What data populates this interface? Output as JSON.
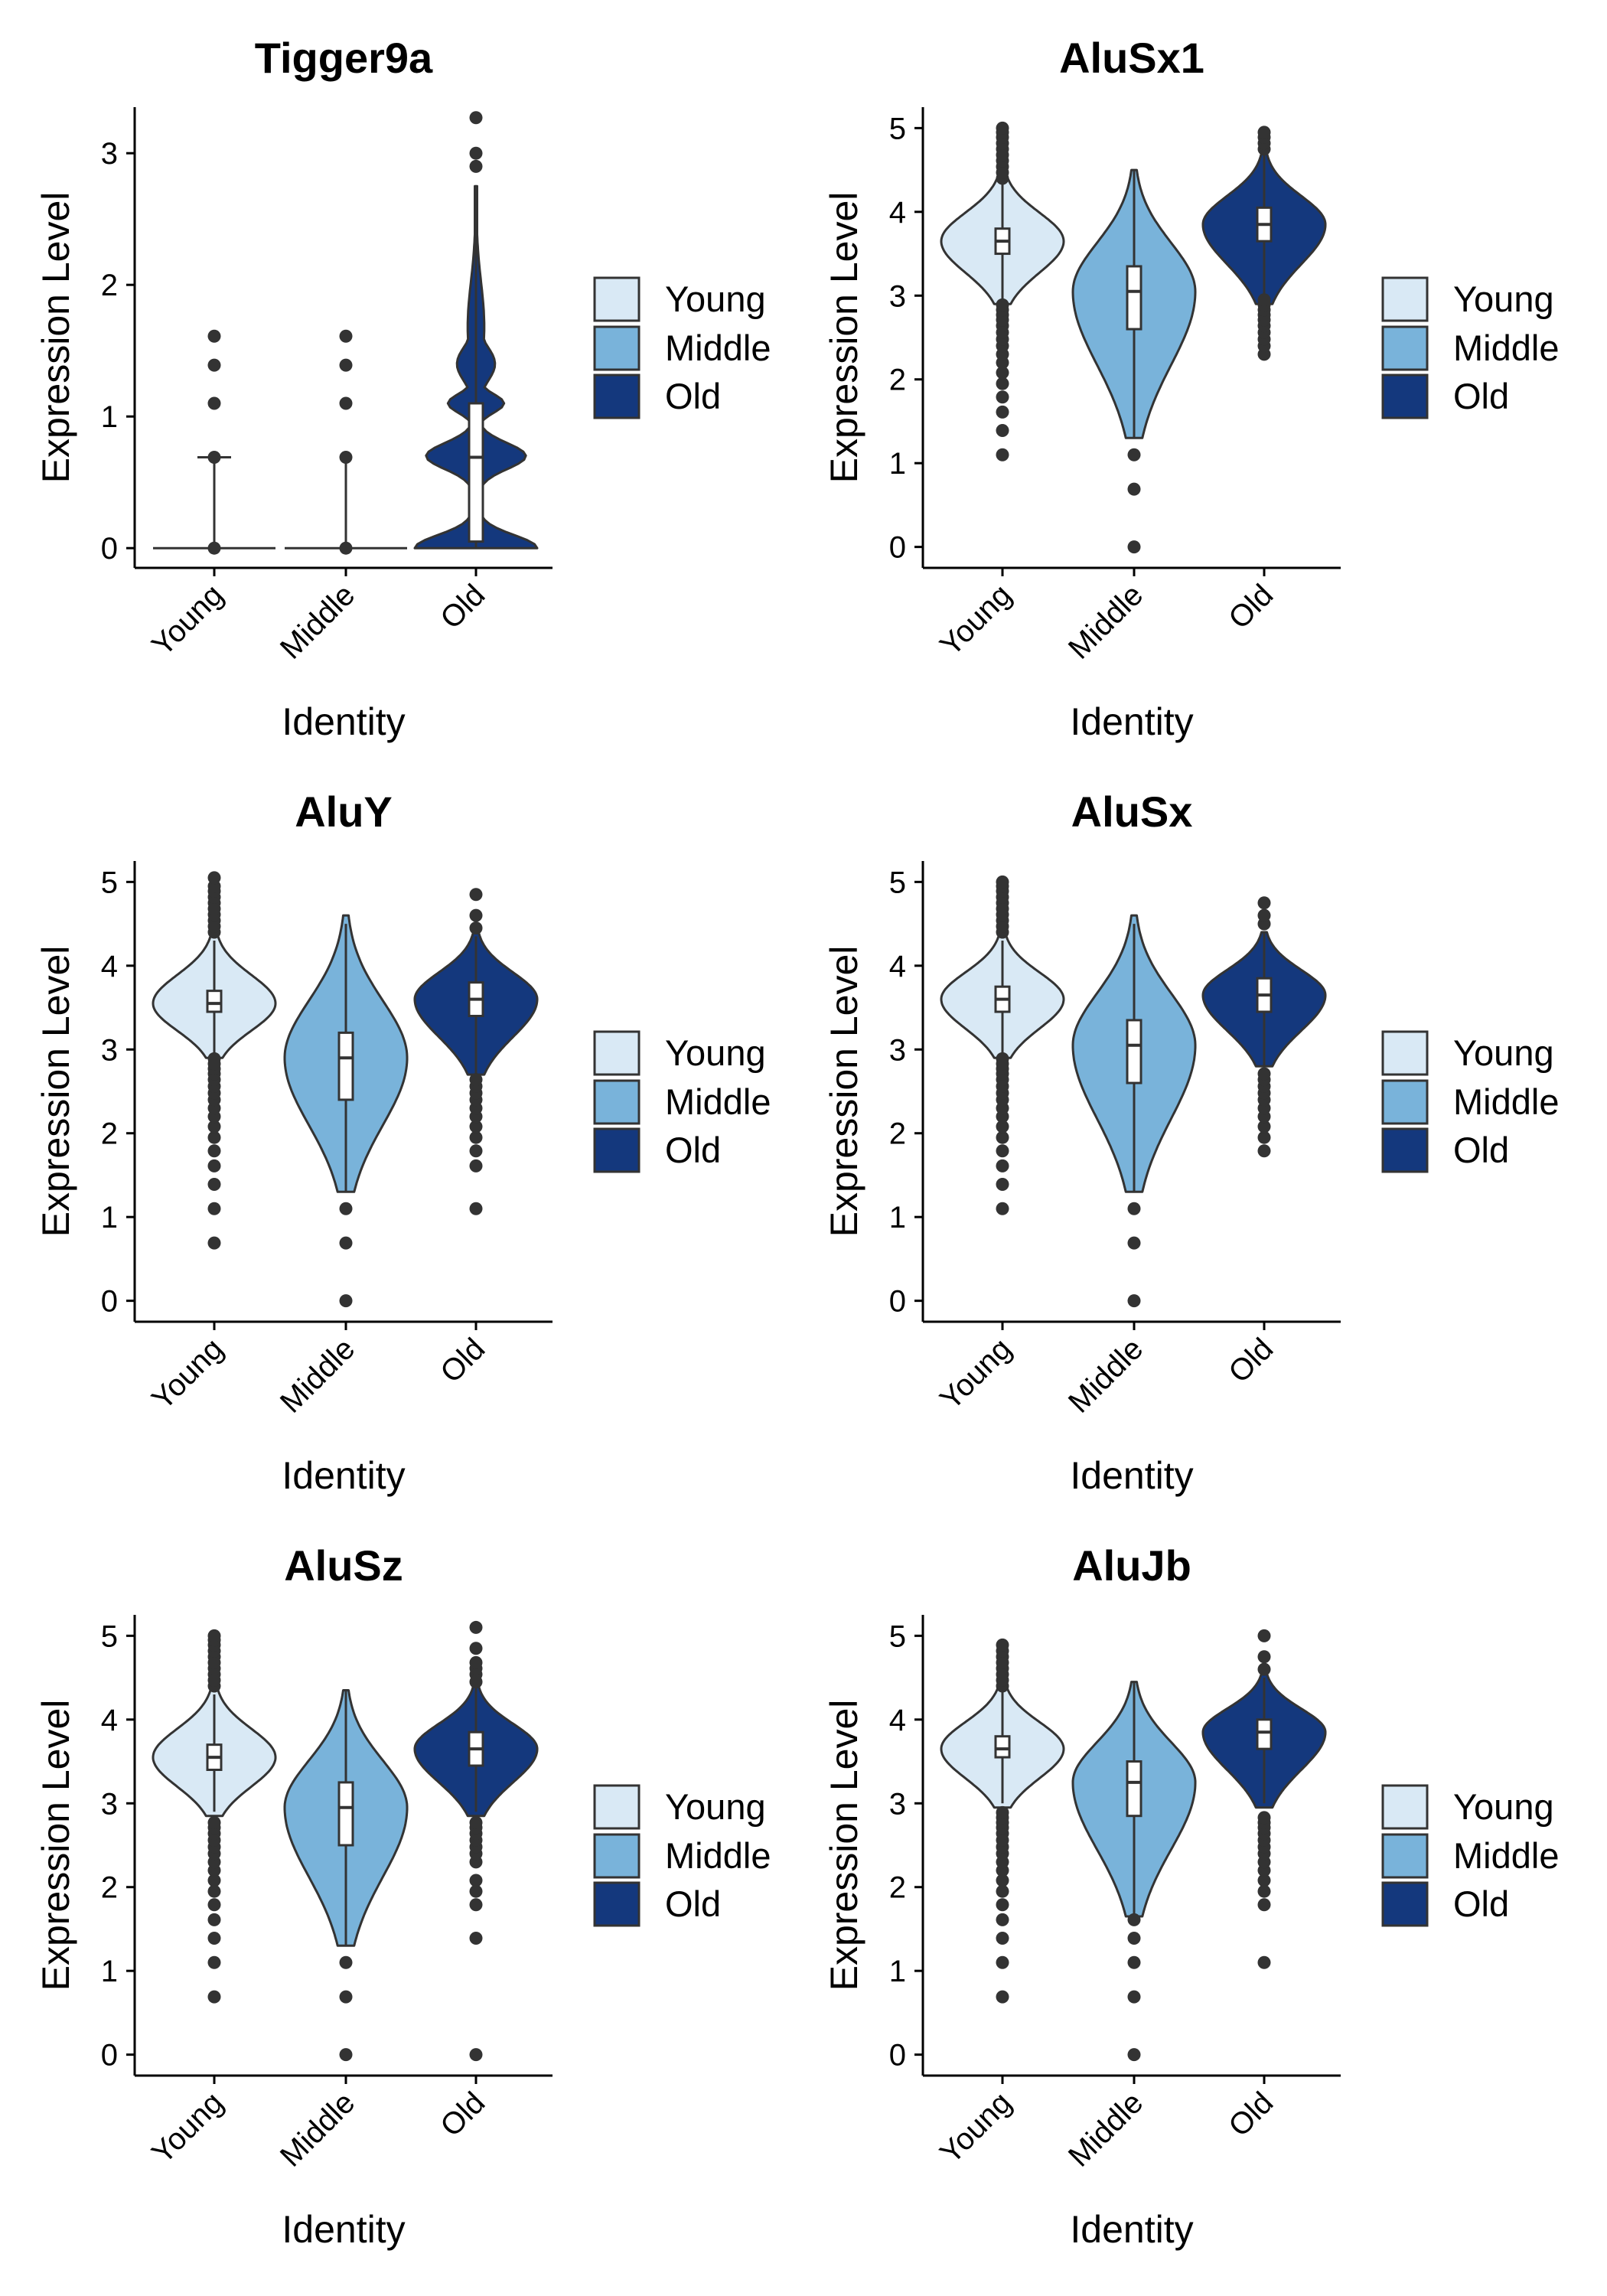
{
  "colors": {
    "Young": "#d9e9f5",
    "Middle": "#79b3da",
    "Old": "#14387d",
    "outline": "#333333"
  },
  "chart_data": [
    {
      "type": "violin",
      "title": "Tigger9a",
      "xlabel": "Identity",
      "ylabel": "Expression Level",
      "categories": [
        "Young",
        "Middle",
        "Old"
      ],
      "ylim": [
        -0.15,
        3.35
      ],
      "yticks": [
        0,
        1,
        2,
        3
      ],
      "legend": [
        "Young",
        "Middle",
        "Old"
      ],
      "groups": [
        {
          "name": "Young",
          "min": 0,
          "q1": 0,
          "median": 0,
          "q3": 0,
          "max": 0.69,
          "top": 0.69,
          "degenerate": true,
          "mode_lines": [
            0.69
          ],
          "outliers": [
            0,
            0.69,
            1.1,
            1.39,
            1.61
          ]
        },
        {
          "name": "Middle",
          "min": 0,
          "q1": 0,
          "median": 0,
          "q3": 0,
          "max": 0.69,
          "top": 0.69,
          "degenerate": true,
          "mode_lines": [],
          "outliers": [
            0,
            0.69,
            1.1,
            1.39,
            1.61
          ]
        },
        {
          "name": "Old",
          "min": 0,
          "q1": 0.05,
          "median": 0.69,
          "q3": 1.1,
          "max": 2.75,
          "top": 2.75,
          "shape": "tigger",
          "outliers": [
            2.9,
            3.0,
            3.27
          ]
        }
      ]
    },
    {
      "type": "violin",
      "title": "AluSx1",
      "xlabel": "Identity",
      "ylabel": "Expression Level",
      "categories": [
        "Young",
        "Middle",
        "Old"
      ],
      "ylim": [
        -0.25,
        5.25
      ],
      "yticks": [
        0,
        1,
        2,
        3,
        4,
        5
      ],
      "legend": [
        "Young",
        "Middle",
        "Old"
      ],
      "groups": [
        {
          "name": "Young",
          "min": 2.95,
          "q1": 3.5,
          "median": 3.65,
          "q3": 3.8,
          "max": 4.35,
          "top": 4.5,
          "bottom": 2.9,
          "outliers": [
            1.1,
            1.39,
            1.61,
            1.79,
            1.95,
            2.08,
            2.2,
            2.3,
            2.4,
            2.48,
            2.56,
            2.64,
            2.71,
            2.77,
            2.83,
            2.89,
            4.4,
            4.47,
            4.54,
            4.61,
            4.68,
            4.75,
            4.82,
            4.89,
            4.95,
            5.0
          ]
        },
        {
          "name": "Middle",
          "min": 1.3,
          "q1": 2.6,
          "median": 3.05,
          "q3": 3.35,
          "max": 4.5,
          "top": 4.5,
          "bottom": 1.3,
          "outliers": [
            0,
            0.69,
            1.1
          ]
        },
        {
          "name": "Old",
          "min": 3.0,
          "q1": 3.65,
          "median": 3.85,
          "q3": 4.05,
          "max": 4.7,
          "top": 4.7,
          "bottom": 2.9,
          "outliers": [
            2.3,
            2.4,
            2.48,
            2.56,
            2.64,
            2.71,
            2.77,
            2.83,
            2.89,
            2.95,
            4.75,
            4.82,
            4.89,
            4.95
          ]
        }
      ]
    },
    {
      "type": "violin",
      "title": "AluY",
      "xlabel": "Identity",
      "ylabel": "Expression Level",
      "categories": [
        "Young",
        "Middle",
        "Old"
      ],
      "ylim": [
        -0.25,
        5.25
      ],
      "yticks": [
        0,
        1,
        2,
        3,
        4,
        5
      ],
      "legend": [
        "Young",
        "Middle",
        "Old"
      ],
      "groups": [
        {
          "name": "Young",
          "min": 2.95,
          "q1": 3.45,
          "median": 3.55,
          "q3": 3.7,
          "max": 4.3,
          "top": 4.4,
          "bottom": 2.9,
          "outliers": [
            0.69,
            1.1,
            1.39,
            1.61,
            1.79,
            1.95,
            2.08,
            2.2,
            2.3,
            2.4,
            2.48,
            2.56,
            2.64,
            2.71,
            2.77,
            2.83,
            2.89,
            4.4,
            4.47,
            4.54,
            4.61,
            4.68,
            4.75,
            4.82,
            4.89,
            4.95,
            5.05
          ]
        },
        {
          "name": "Middle",
          "min": 1.3,
          "q1": 2.4,
          "median": 2.9,
          "q3": 3.2,
          "max": 4.5,
          "top": 4.6,
          "bottom": 1.3,
          "outliers": [
            0,
            0.69,
            1.1
          ]
        },
        {
          "name": "Old",
          "min": 2.7,
          "q1": 3.4,
          "median": 3.6,
          "q3": 3.8,
          "max": 4.35,
          "top": 4.4,
          "bottom": 2.7,
          "outliers": [
            1.1,
            1.61,
            1.79,
            1.95,
            2.08,
            2.2,
            2.3,
            2.4,
            2.48,
            2.56,
            2.64,
            4.45,
            4.6,
            4.85
          ]
        }
      ]
    },
    {
      "type": "violin",
      "title": "AluSx",
      "xlabel": "Identity",
      "ylabel": "Expression Level",
      "categories": [
        "Young",
        "Middle",
        "Old"
      ],
      "ylim": [
        -0.25,
        5.25
      ],
      "yticks": [
        0,
        1,
        2,
        3,
        4,
        5
      ],
      "legend": [
        "Young",
        "Middle",
        "Old"
      ],
      "groups": [
        {
          "name": "Young",
          "min": 2.95,
          "q1": 3.45,
          "median": 3.6,
          "q3": 3.75,
          "max": 4.3,
          "top": 4.4,
          "bottom": 2.9,
          "outliers": [
            1.1,
            1.39,
            1.61,
            1.79,
            1.95,
            2.08,
            2.2,
            2.3,
            2.4,
            2.48,
            2.56,
            2.64,
            2.71,
            2.77,
            2.83,
            2.89,
            4.4,
            4.47,
            4.54,
            4.61,
            4.68,
            4.75,
            4.82,
            4.89,
            4.95,
            5.0
          ]
        },
        {
          "name": "Middle",
          "min": 1.3,
          "q1": 2.6,
          "median": 3.05,
          "q3": 3.35,
          "max": 4.5,
          "top": 4.6,
          "bottom": 1.3,
          "outliers": [
            0,
            0.69,
            1.1
          ]
        },
        {
          "name": "Old",
          "min": 2.8,
          "q1": 3.45,
          "median": 3.65,
          "q3": 3.85,
          "max": 4.4,
          "top": 4.4,
          "bottom": 2.8,
          "outliers": [
            1.79,
            1.95,
            2.08,
            2.2,
            2.3,
            2.4,
            2.48,
            2.56,
            2.64,
            2.71,
            4.5,
            4.6,
            4.75
          ]
        }
      ]
    },
    {
      "type": "violin",
      "title": "AluSz",
      "xlabel": "Identity",
      "ylabel": "Expression Level",
      "categories": [
        "Young",
        "Middle",
        "Old"
      ],
      "ylim": [
        -0.25,
        5.25
      ],
      "yticks": [
        0,
        1,
        2,
        3,
        4,
        5
      ],
      "legend": [
        "Young",
        "Middle",
        "Old"
      ],
      "groups": [
        {
          "name": "Young",
          "min": 2.9,
          "q1": 3.4,
          "median": 3.55,
          "q3": 3.7,
          "max": 4.3,
          "top": 4.4,
          "bottom": 2.85,
          "outliers": [
            0.69,
            1.1,
            1.39,
            1.61,
            1.79,
            1.95,
            2.08,
            2.2,
            2.3,
            2.4,
            2.48,
            2.56,
            2.64,
            2.71,
            2.77,
            4.4,
            4.47,
            4.54,
            4.61,
            4.68,
            4.75,
            4.82,
            4.89,
            4.95,
            5.0
          ]
        },
        {
          "name": "Middle",
          "min": 1.3,
          "q1": 2.5,
          "median": 2.95,
          "q3": 3.25,
          "max": 4.35,
          "top": 4.35,
          "bottom": 1.3,
          "outliers": [
            0,
            0.69,
            1.1
          ]
        },
        {
          "name": "Old",
          "min": 2.9,
          "q1": 3.45,
          "median": 3.65,
          "q3": 3.85,
          "max": 4.4,
          "top": 4.4,
          "bottom": 2.85,
          "outliers": [
            0,
            1.39,
            1.79,
            1.95,
            2.08,
            2.3,
            2.4,
            2.48,
            2.56,
            2.64,
            2.71,
            2.77,
            4.45,
            4.54,
            4.61,
            4.68,
            4.85,
            5.1
          ]
        }
      ]
    },
    {
      "type": "violin",
      "title": "AluJb",
      "xlabel": "Identity",
      "ylabel": "Expression Level",
      "categories": [
        "Young",
        "Middle",
        "Old"
      ],
      "ylim": [
        -0.25,
        5.25
      ],
      "yticks": [
        0,
        1,
        2,
        3,
        4,
        5
      ],
      "legend": [
        "Young",
        "Middle",
        "Old"
      ],
      "groups": [
        {
          "name": "Young",
          "min": 3.0,
          "q1": 3.55,
          "median": 3.65,
          "q3": 3.8,
          "max": 4.35,
          "top": 4.45,
          "bottom": 2.95,
          "outliers": [
            0.69,
            1.1,
            1.39,
            1.61,
            1.79,
            1.95,
            2.08,
            2.2,
            2.3,
            2.4,
            2.48,
            2.56,
            2.64,
            2.71,
            2.77,
            2.83,
            2.89,
            4.4,
            4.47,
            4.54,
            4.61,
            4.68,
            4.75,
            4.82,
            4.89
          ]
        },
        {
          "name": "Middle",
          "min": 1.65,
          "q1": 2.85,
          "median": 3.25,
          "q3": 3.5,
          "max": 4.45,
          "top": 4.45,
          "bottom": 1.65,
          "outliers": [
            0,
            0.69,
            1.1,
            1.39,
            1.61
          ]
        },
        {
          "name": "Old",
          "min": 3.0,
          "q1": 3.65,
          "median": 3.85,
          "q3": 4.0,
          "max": 4.5,
          "top": 4.55,
          "bottom": 2.95,
          "outliers": [
            1.1,
            1.79,
            1.95,
            2.08,
            2.2,
            2.3,
            2.4,
            2.48,
            2.56,
            2.64,
            2.71,
            2.77,
            2.83,
            4.6,
            4.75,
            5.0
          ]
        }
      ]
    }
  ]
}
